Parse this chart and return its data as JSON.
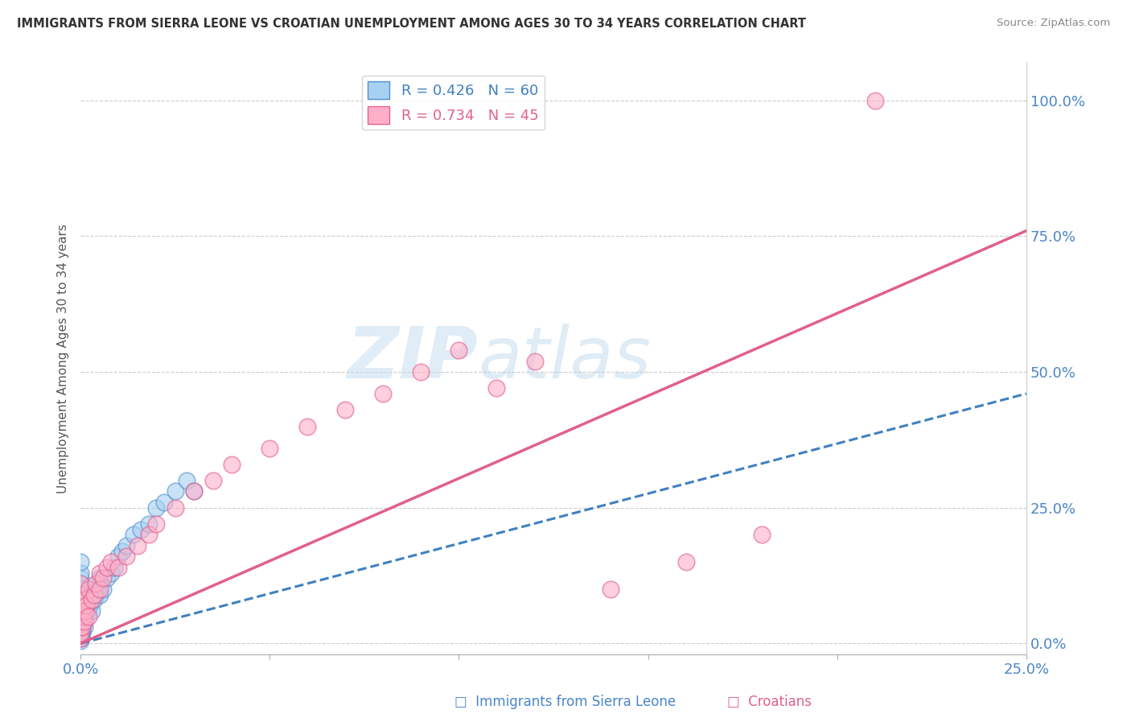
{
  "title": "IMMIGRANTS FROM SIERRA LEONE VS CROATIAN UNEMPLOYMENT AMONG AGES 30 TO 34 YEARS CORRELATION CHART",
  "source": "Source: ZipAtlas.com",
  "ylabel": "Unemployment Among Ages 30 to 34 years",
  "ytick_labels": [
    "0.0%",
    "25.0%",
    "50.0%",
    "75.0%",
    "100.0%"
  ],
  "ytick_values": [
    0,
    25,
    50,
    75,
    100
  ],
  "legend_blue_label": "R = 0.426   N = 60",
  "legend_pink_label": "R = 0.734   N = 45",
  "blue_color": "#a8d0f0",
  "pink_color": "#ffb0c8",
  "blue_edge_color": "#5090d0",
  "pink_edge_color": "#e06090",
  "blue_line_color": "#4080c0",
  "pink_line_color": "#e0608a",
  "watermark_zip": "ZIP",
  "watermark_atlas": "atlas",
  "blue_scatter_x": [
    0.0,
    0.0,
    0.0,
    0.0,
    0.0,
    0.0,
    0.0,
    0.0,
    0.0,
    0.0,
    0.0,
    0.0,
    0.0,
    0.0,
    0.0,
    0.0,
    0.0,
    0.0,
    0.0,
    0.0,
    0.05,
    0.05,
    0.08,
    0.1,
    0.1,
    0.1,
    0.12,
    0.15,
    0.15,
    0.18,
    0.2,
    0.2,
    0.25,
    0.3,
    0.3,
    0.35,
    0.4,
    0.45,
    0.5,
    0.5,
    0.6,
    0.7,
    0.8,
    0.9,
    1.0,
    1.1,
    1.2,
    1.4,
    1.6,
    1.8,
    2.0,
    2.2,
    2.5,
    2.8,
    3.0,
    0.02,
    0.03,
    0.04,
    0.06,
    0.07
  ],
  "blue_scatter_y": [
    0.5,
    1.0,
    1.5,
    2.0,
    2.5,
    3.0,
    3.5,
    4.0,
    4.5,
    5.0,
    5.5,
    6.0,
    7.0,
    8.0,
    9.0,
    10.0,
    11.0,
    12.0,
    13.0,
    15.0,
    2.0,
    3.5,
    4.0,
    3.0,
    5.0,
    8.0,
    4.5,
    5.5,
    7.0,
    6.0,
    6.5,
    9.0,
    7.5,
    6.0,
    10.0,
    8.0,
    9.0,
    10.0,
    9.0,
    12.0,
    10.0,
    12.0,
    13.0,
    14.0,
    16.0,
    17.0,
    18.0,
    20.0,
    21.0,
    22.0,
    25.0,
    26.0,
    28.0,
    30.0,
    28.0,
    1.5,
    2.5,
    3.0,
    4.0,
    5.0
  ],
  "pink_scatter_x": [
    0.0,
    0.0,
    0.0,
    0.0,
    0.0,
    0.0,
    0.0,
    0.0,
    0.05,
    0.08,
    0.1,
    0.1,
    0.12,
    0.15,
    0.2,
    0.2,
    0.3,
    0.35,
    0.4,
    0.5,
    0.5,
    0.6,
    0.7,
    0.8,
    1.0,
    1.2,
    1.5,
    1.8,
    2.0,
    2.5,
    3.0,
    3.5,
    4.0,
    5.0,
    6.0,
    7.0,
    8.0,
    9.0,
    10.0,
    11.0,
    12.0,
    14.0,
    16.0,
    18.0,
    21.0
  ],
  "pink_scatter_y": [
    1.0,
    2.0,
    3.0,
    4.0,
    5.0,
    7.0,
    9.0,
    11.0,
    3.0,
    5.0,
    4.0,
    8.0,
    6.0,
    7.0,
    5.0,
    10.0,
    8.0,
    9.0,
    11.0,
    10.0,
    13.0,
    12.0,
    14.0,
    15.0,
    14.0,
    16.0,
    18.0,
    20.0,
    22.0,
    25.0,
    28.0,
    30.0,
    33.0,
    36.0,
    40.0,
    43.0,
    46.0,
    50.0,
    54.0,
    47.0,
    52.0,
    10.0,
    15.0,
    20.0,
    100.0
  ],
  "xlim": [
    0,
    25
  ],
  "ylim": [
    0,
    107
  ],
  "blue_trend_x": [
    0,
    25
  ],
  "blue_trend_y": [
    0,
    46
  ],
  "pink_trend_x": [
    0,
    25
  ],
  "pink_trend_y": [
    0,
    76
  ]
}
